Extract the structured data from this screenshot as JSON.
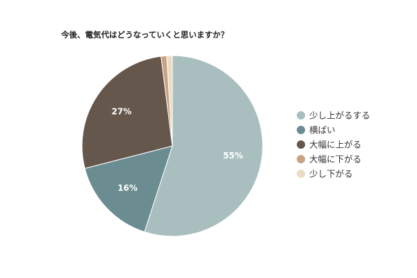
{
  "chart_data": {
    "type": "pie",
    "title": "今後、電気代はどうなっていくと思いますか？",
    "categories": [
      "少し上がるする",
      "横ばい",
      "大幅に上がる",
      "大幅に下がる",
      "少し下がる"
    ],
    "values": [
      55,
      16,
      27,
      1,
      1
    ],
    "data_labels": [
      "55%",
      "16%",
      "27%",
      "",
      ""
    ],
    "colors": [
      "#a9bfbf",
      "#6b8c91",
      "#66574d",
      "#c9a283",
      "#eadcc3"
    ],
    "legend_position": "right",
    "start_angle_deg": 0,
    "direction": "clockwise"
  }
}
